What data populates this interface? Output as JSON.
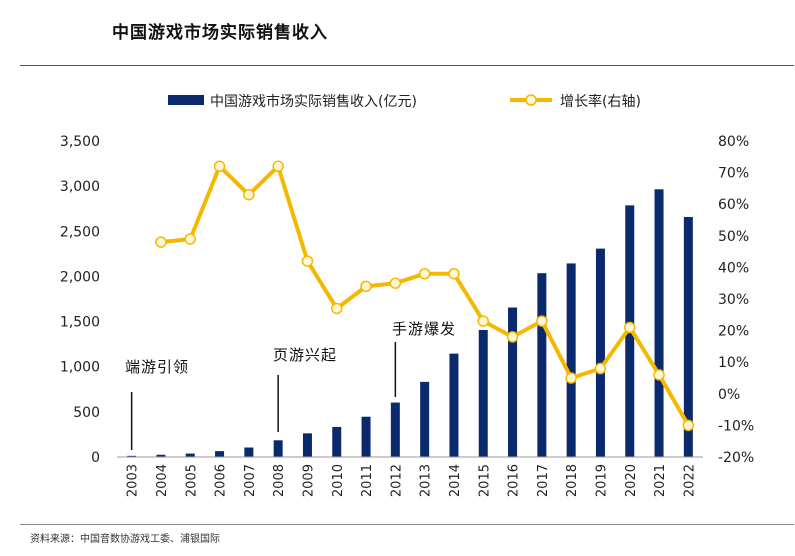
{
  "title": "中国游戏市场实际销售收入",
  "source": "资料来源：中国音数协游戏工委、浦银国际",
  "colors": {
    "bar": "#0b2a6e",
    "line": "#f5b800",
    "marker_fill": "#fff8d6",
    "axis": "#999999",
    "text": "#222222"
  },
  "chart_data": {
    "type": "bar+line",
    "categories": [
      "2003",
      "2004",
      "2005",
      "2006",
      "2007",
      "2008",
      "2009",
      "2010",
      "2011",
      "2012",
      "2013",
      "2014",
      "2015",
      "2016",
      "2017",
      "2018",
      "2019",
      "2020",
      "2021",
      "2022"
    ],
    "series": [
      {
        "name": "中国游戏市场实际销售收入(亿元)",
        "type": "bar",
        "axis": "left",
        "values": [
          13,
          25,
          38,
          65,
          105,
          185,
          262,
          333,
          446,
          603,
          832,
          1145,
          1407,
          1656,
          2036,
          2144,
          2308,
          2787,
          2965,
          2658
        ]
      },
      {
        "name": "增长率(右轴)",
        "type": "line",
        "axis": "right",
        "values": [
          null,
          48,
          49,
          72,
          63,
          72,
          42,
          27,
          34,
          35,
          38,
          38,
          23,
          18,
          23,
          5,
          8,
          21,
          6,
          -10
        ]
      }
    ],
    "left_axis": {
      "min": 0,
      "max": 3500,
      "step": 500,
      "tick_labels": [
        "0",
        "500",
        "1,000",
        "1,500",
        "2,000",
        "2,500",
        "3,000",
        "3,500"
      ]
    },
    "right_axis": {
      "min": -20,
      "max": 80,
      "step": 10,
      "tick_labels": [
        "-20%",
        "-10%",
        "0%",
        "10%",
        "20%",
        "30%",
        "40%",
        "50%",
        "60%",
        "70%",
        "80%"
      ]
    },
    "annotations": [
      {
        "text": "端游引领",
        "year": "2003"
      },
      {
        "text": "页游兴起",
        "year": "2008"
      },
      {
        "text": "手游爆发",
        "year": "2012"
      }
    ],
    "legend": [
      "中国游戏市场实际销售收入(亿元)",
      "增长率(右轴)"
    ],
    "legend_position": "top"
  }
}
